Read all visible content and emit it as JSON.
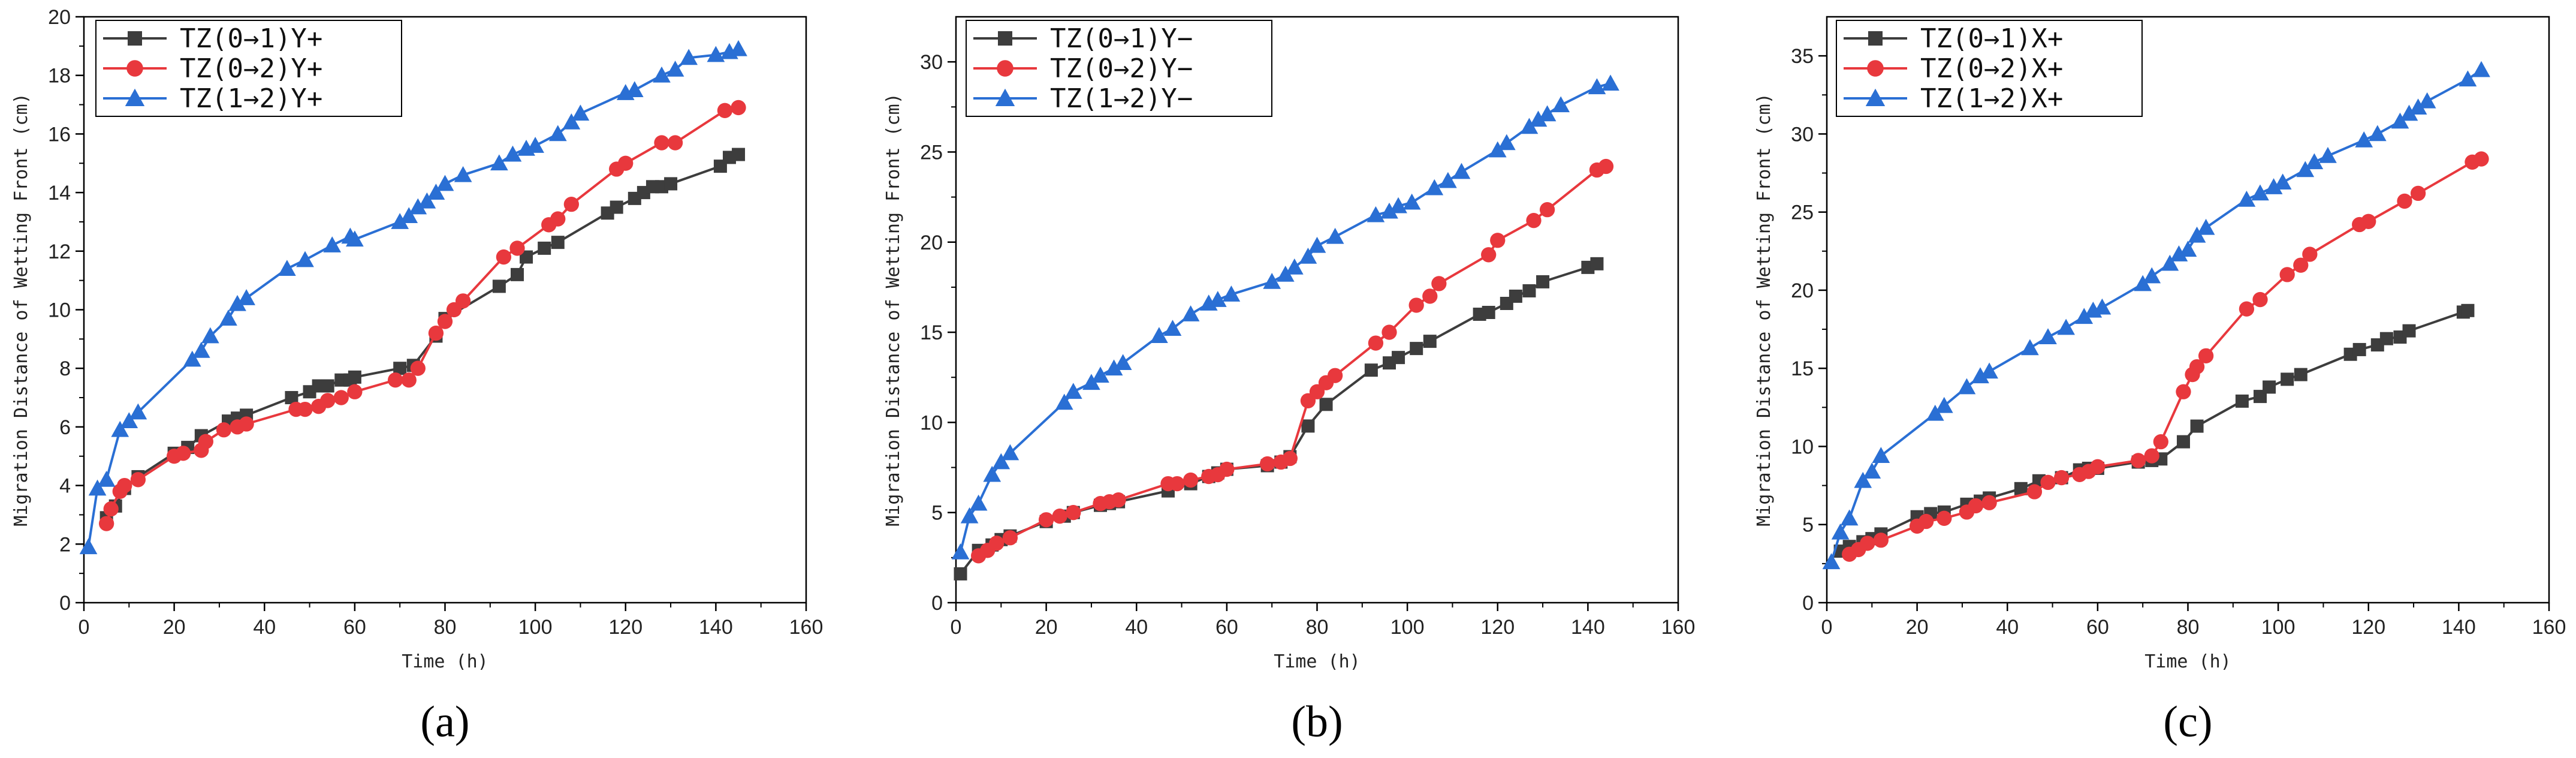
{
  "chart_data": [
    {
      "type": "line",
      "panel_label": "(a)",
      "xlabel": "Time (h)",
      "ylabel": "Migration Distance of Wetting Front (cm)",
      "xlim": [
        0,
        160
      ],
      "ylim": [
        0,
        20
      ],
      "xticks": [
        "0",
        "20",
        "40",
        "60",
        "80",
        "100",
        "120",
        "140",
        "160"
      ],
      "yticks": [
        "0",
        "2",
        "4",
        "6",
        "8",
        "10",
        "12",
        "14",
        "16",
        "18",
        "20"
      ],
      "legend": "top-left",
      "series": [
        {
          "name": "TZ(0→1)Y+",
          "color": "#3d3d3d",
          "marker": "square",
          "x": [
            5,
            7,
            9,
            12,
            20,
            23,
            26,
            32,
            34,
            36,
            46,
            50,
            52,
            54,
            57,
            59,
            60,
            70,
            73,
            78,
            80,
            92,
            96,
            98,
            102,
            105,
            116,
            118,
            122,
            124,
            126,
            128,
            130,
            141,
            143,
            145
          ],
          "y": [
            2.9,
            3.3,
            3.9,
            4.3,
            5.1,
            5.3,
            5.7,
            6.2,
            6.3,
            6.4,
            7.0,
            7.2,
            7.4,
            7.4,
            7.6,
            7.6,
            7.7,
            8.0,
            8.1,
            9.1,
            9.7,
            10.8,
            11.2,
            11.8,
            12.1,
            12.3,
            13.3,
            13.5,
            13.8,
            14.0,
            14.2,
            14.2,
            14.3,
            14.9,
            15.2,
            15.3
          ]
        },
        {
          "name": "TZ(0→2)Y+",
          "color": "#e8383d",
          "marker": "circle",
          "x": [
            5,
            6,
            8,
            9,
            12,
            20,
            22,
            26,
            27,
            31,
            34,
            36,
            47,
            49,
            52,
            54,
            57,
            60,
            69,
            72,
            74,
            78,
            80,
            82,
            84,
            93,
            96,
            103,
            105,
            108,
            118,
            120,
            128,
            131,
            142,
            145
          ],
          "y": [
            2.7,
            3.2,
            3.8,
            4.0,
            4.2,
            5.0,
            5.1,
            5.2,
            5.5,
            5.9,
            6.0,
            6.1,
            6.6,
            6.6,
            6.7,
            6.9,
            7.0,
            7.2,
            7.6,
            7.6,
            8.0,
            9.2,
            9.6,
            10.0,
            10.3,
            11.8,
            12.1,
            12.9,
            13.1,
            13.6,
            14.8,
            15.0,
            15.7,
            15.7,
            16.8,
            16.9
          ]
        },
        {
          "name": "TZ(1→2)Y+",
          "color": "#2a6fd4",
          "marker": "triangle",
          "x": [
            1,
            3,
            5,
            8,
            10,
            12,
            24,
            26,
            28,
            32,
            34,
            36,
            45,
            49,
            55,
            59,
            60,
            70,
            72,
            74,
            76,
            78,
            80,
            84,
            92,
            95,
            98,
            100,
            105,
            108,
            110,
            120,
            122,
            128,
            131,
            134,
            140,
            143,
            145
          ],
          "y": [
            1.9,
            3.9,
            4.2,
            5.9,
            6.2,
            6.5,
            8.3,
            8.6,
            9.1,
            9.7,
            10.2,
            10.4,
            11.4,
            11.7,
            12.2,
            12.5,
            12.4,
            13.0,
            13.2,
            13.5,
            13.7,
            14.0,
            14.3,
            14.6,
            15.0,
            15.3,
            15.5,
            15.6,
            16.0,
            16.4,
            16.7,
            17.4,
            17.5,
            18.0,
            18.2,
            18.6,
            18.7,
            18.8,
            18.9
          ]
        }
      ]
    },
    {
      "type": "line",
      "panel_label": "(b)",
      "xlabel": "Time (h)",
      "ylabel": "Migration Distance of Wetting Front (cm)",
      "xlim": [
        0,
        160
      ],
      "ylim": [
        0,
        32.5
      ],
      "xticks": [
        "0",
        "20",
        "40",
        "60",
        "80",
        "100",
        "120",
        "140",
        "160"
      ],
      "yticks": [
        "0",
        "5",
        "10",
        "15",
        "20",
        "25",
        "30"
      ],
      "legend": "top-left",
      "series": [
        {
          "name": "TZ(0→1)Y−",
          "color": "#3d3d3d",
          "marker": "square",
          "x": [
            1,
            5,
            8,
            10,
            12,
            20,
            24,
            26,
            32,
            34,
            36,
            47,
            52,
            56,
            58,
            60,
            69,
            72,
            74,
            78,
            82,
            92,
            96,
            98,
            102,
            105,
            116,
            118,
            122,
            124,
            127,
            130,
            140,
            142
          ],
          "y": [
            1.6,
            2.9,
            3.2,
            3.5,
            3.7,
            4.5,
            4.8,
            5.0,
            5.4,
            5.5,
            5.6,
            6.2,
            6.6,
            7.0,
            7.2,
            7.4,
            7.6,
            7.8,
            8.1,
            9.8,
            11.0,
            12.9,
            13.3,
            13.6,
            14.1,
            14.5,
            16.0,
            16.1,
            16.6,
            17.0,
            17.3,
            17.8,
            18.6,
            18.8
          ]
        },
        {
          "name": "TZ(0→2)Y−",
          "color": "#e8383d",
          "marker": "circle",
          "x": [
            5,
            7,
            9,
            12,
            20,
            23,
            26,
            32,
            34,
            36,
            47,
            49,
            52,
            56,
            58,
            60,
            69,
            72,
            74,
            78,
            80,
            82,
            84,
            93,
            96,
            102,
            105,
            107,
            118,
            120,
            128,
            131,
            142,
            144
          ],
          "y": [
            2.6,
            2.9,
            3.3,
            3.6,
            4.6,
            4.8,
            5.0,
            5.5,
            5.6,
            5.7,
            6.6,
            6.6,
            6.8,
            7.0,
            7.1,
            7.4,
            7.7,
            7.8,
            8.0,
            11.2,
            11.7,
            12.2,
            12.6,
            14.4,
            15.0,
            16.5,
            17.0,
            17.7,
            19.3,
            20.1,
            21.2,
            21.8,
            24.0,
            24.2
          ]
        },
        {
          "name": "TZ(1→2)Y−",
          "color": "#2a6fd4",
          "marker": "triangle",
          "x": [
            1,
            3,
            5,
            8,
            10,
            12,
            24,
            26,
            30,
            32,
            35,
            37,
            45,
            48,
            52,
            56,
            58,
            61,
            70,
            73,
            75,
            78,
            80,
            84,
            93,
            96,
            98,
            101,
            106,
            109,
            112,
            120,
            122,
            127,
            129,
            131,
            134,
            142,
            145
          ],
          "y": [
            2.8,
            4.8,
            5.5,
            7.1,
            7.8,
            8.3,
            11.1,
            11.7,
            12.2,
            12.6,
            13.0,
            13.3,
            14.8,
            15.2,
            16.0,
            16.6,
            16.8,
            17.1,
            17.8,
            18.2,
            18.6,
            19.2,
            19.8,
            20.3,
            21.5,
            21.7,
            22.0,
            22.2,
            23.0,
            23.4,
            23.9,
            25.1,
            25.5,
            26.4,
            26.8,
            27.1,
            27.6,
            28.6,
            28.8
          ]
        }
      ]
    },
    {
      "type": "line",
      "panel_label": "(c)",
      "xlabel": "Time (h)",
      "ylabel": "Migration Distance of Wetting Front (cm)",
      "xlim": [
        0,
        160
      ],
      "ylim": [
        0,
        37.5
      ],
      "xticks": [
        "0",
        "20",
        "40",
        "60",
        "80",
        "100",
        "120",
        "140",
        "160"
      ],
      "yticks": [
        "0",
        "5",
        "10",
        "15",
        "20",
        "25",
        "30",
        "35"
      ],
      "legend": "top-left",
      "series": [
        {
          "name": "TZ(0→1)X+",
          "color": "#3d3d3d",
          "marker": "square",
          "x": [
            3,
            5,
            8,
            10,
            12,
            20,
            23,
            26,
            31,
            34,
            36,
            43,
            47,
            52,
            56,
            58,
            60,
            69,
            72,
            74,
            79,
            82,
            92,
            96,
            98,
            102,
            105,
            116,
            118,
            122,
            124,
            127,
            129,
            141,
            142
          ],
          "y": [
            3.3,
            3.6,
            3.9,
            4.1,
            4.4,
            5.5,
            5.7,
            5.8,
            6.3,
            6.5,
            6.7,
            7.3,
            7.8,
            8.0,
            8.5,
            8.6,
            8.6,
            9.0,
            9.1,
            9.2,
            10.3,
            11.3,
            12.9,
            13.2,
            13.8,
            14.3,
            14.6,
            15.9,
            16.2,
            16.5,
            16.9,
            17.0,
            17.4,
            18.6,
            18.7
          ]
        },
        {
          "name": "TZ(0→2)X+",
          "color": "#e8383d",
          "marker": "circle",
          "x": [
            5,
            7,
            9,
            12,
            20,
            22,
            26,
            31,
            33,
            36,
            46,
            49,
            52,
            56,
            58,
            60,
            69,
            72,
            74,
            79,
            81,
            82,
            84,
            93,
            96,
            102,
            105,
            107,
            118,
            120,
            128,
            131,
            143,
            145
          ],
          "y": [
            3.1,
            3.4,
            3.8,
            4.0,
            4.9,
            5.2,
            5.4,
            5.8,
            6.2,
            6.4,
            7.1,
            7.7,
            8.0,
            8.2,
            8.4,
            8.7,
            9.1,
            9.4,
            10.3,
            13.5,
            14.6,
            15.1,
            15.8,
            18.8,
            19.4,
            21.0,
            21.6,
            22.3,
            24.2,
            24.4,
            25.7,
            26.2,
            28.2,
            28.4
          ]
        },
        {
          "name": "TZ(1→2)X+",
          "color": "#2a6fd4",
          "marker": "triangle",
          "x": [
            1,
            3,
            5,
            8,
            10,
            12,
            24,
            26,
            31,
            34,
            36,
            45,
            49,
            53,
            57,
            59,
            61,
            70,
            72,
            76,
            78,
            80,
            82,
            84,
            93,
            96,
            99,
            101,
            106,
            108,
            111,
            119,
            122,
            127,
            129,
            131,
            133,
            142,
            145
          ],
          "y": [
            2.6,
            4.5,
            5.4,
            7.8,
            8.4,
            9.4,
            12.1,
            12.6,
            13.8,
            14.5,
            14.8,
            16.3,
            17.0,
            17.6,
            18.3,
            18.7,
            18.9,
            20.4,
            20.9,
            21.7,
            22.3,
            22.6,
            23.5,
            24.0,
            25.8,
            26.2,
            26.6,
            26.9,
            27.7,
            28.2,
            28.6,
            29.6,
            30.0,
            30.8,
            31.3,
            31.7,
            32.1,
            33.5,
            34.1
          ]
        }
      ]
    }
  ]
}
